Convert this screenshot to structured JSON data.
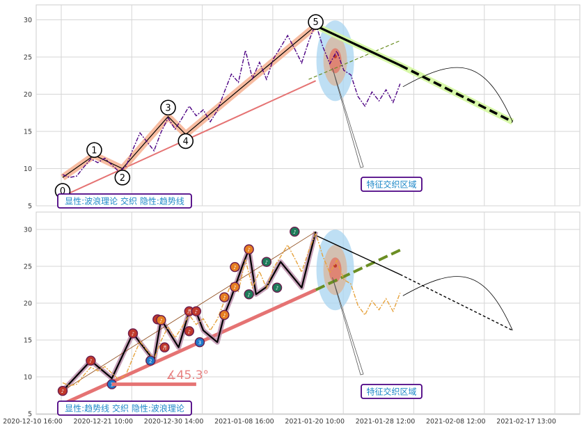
{
  "chart_data": [
    {
      "type": "line",
      "panel": "top",
      "ylim": [
        5,
        32
      ],
      "yticks": [
        5,
        10,
        15,
        20,
        25,
        30
      ],
      "grid": true,
      "caption": "显性:波浪理论 交织 隐性:趋势线",
      "annotation": "特征交织区域",
      "wave_labels": [
        {
          "label": "0",
          "x": 0,
          "y": 7.0
        },
        {
          "label": "1",
          "x": 9,
          "y": 12.5
        },
        {
          "label": "2",
          "x": 17,
          "y": 8.8
        },
        {
          "label": "3",
          "x": 30,
          "y": 18.2
        },
        {
          "label": "4",
          "x": 35,
          "y": 13.7
        },
        {
          "label": "5",
          "x": 72,
          "y": 29.7
        }
      ],
      "series": [
        {
          "role": "price",
          "color": "#4b0082",
          "x": [
            0,
            2,
            4,
            6,
            8,
            10,
            12,
            14,
            16,
            18,
            20,
            22,
            24,
            26,
            28,
            30,
            32,
            34,
            36,
            38,
            40,
            42,
            44,
            46,
            48,
            50,
            52,
            54,
            56,
            58,
            60,
            62,
            64,
            66,
            68,
            70,
            72,
            74,
            76,
            78,
            80,
            82,
            84,
            86,
            88,
            90,
            92,
            94,
            96
          ],
          "y": [
            9.2,
            8.8,
            9.0,
            10.2,
            11.3,
            10.8,
            11.4,
            10.5,
            9.6,
            10.3,
            12.6,
            14.8,
            13.6,
            12.4,
            14.9,
            16.8,
            15.3,
            16.8,
            18.4,
            17.1,
            17.9,
            16.3,
            17.8,
            20.3,
            22.7,
            21.6,
            25.9,
            22.1,
            24.3,
            22.0,
            24.8,
            26.3,
            27.9,
            26.1,
            24.2,
            27.1,
            29.5,
            26.4,
            24.1,
            25.8,
            23.2,
            22.6,
            19.7,
            18.4,
            20.3,
            19.1,
            20.6,
            18.9,
            21.4
          ]
        },
        {
          "role": "wave",
          "color": "#000000",
          "x": [
            0,
            9,
            17,
            30,
            35,
            72
          ],
          "y": [
            8.8,
            11.8,
            10.0,
            17.0,
            14.6,
            29.2
          ]
        },
        {
          "role": "trend-support",
          "color": "#e57373",
          "x": [
            0,
            72
          ],
          "y": [
            6.3,
            21.8
          ]
        },
        {
          "role": "trend-channel",
          "color": "#6b8e23",
          "x": [
            70,
            96
          ],
          "y": [
            22.0,
            27.2
          ]
        },
        {
          "role": "trend-resistance",
          "color": "#000000",
          "x": [
            72,
            96,
            128
          ],
          "y": [
            29.2,
            23.9,
            16.3
          ]
        }
      ]
    },
    {
      "type": "line",
      "panel": "bottom",
      "ylim": [
        5,
        32
      ],
      "yticks": [
        5,
        10,
        15,
        20,
        25,
        30
      ],
      "grid": true,
      "caption": "显性:趋势线 交织 隐性:波浪理论",
      "annotation": "特征交织区域",
      "angle_label": "∡45.3°",
      "x_tick_labels": [
        "2020-12-10 16:00",
        "2020-12-21 10:00",
        "2020-12-30 14:00",
        "2021-01-08 16:00",
        "2021-01-20 10:00",
        "2021-01-28 12:00",
        "2021-02-08 12:00",
        "2021-02-17 13:00"
      ],
      "series": [
        {
          "role": "price",
          "color": "#e6a23c",
          "x": [
            0,
            2,
            4,
            6,
            8,
            10,
            12,
            14,
            16,
            18,
            20,
            22,
            24,
            26,
            28,
            30,
            32,
            34,
            36,
            38,
            40,
            42,
            44,
            46,
            48,
            50,
            52,
            54,
            56,
            58,
            60,
            62,
            64,
            66,
            68,
            70,
            72,
            74,
            76,
            78,
            80,
            82,
            84,
            86,
            88,
            90,
            92,
            94,
            96
          ],
          "y": [
            9.2,
            8.8,
            9.0,
            10.2,
            11.3,
            10.8,
            11.4,
            10.5,
            9.6,
            10.3,
            12.6,
            14.8,
            13.6,
            12.4,
            14.9,
            16.8,
            15.3,
            16.8,
            18.4,
            17.1,
            17.9,
            16.3,
            17.8,
            20.3,
            22.7,
            21.6,
            25.9,
            22.1,
            24.3,
            22.0,
            24.8,
            26.3,
            27.9,
            26.1,
            24.2,
            27.1,
            29.5,
            26.4,
            24.1,
            25.8,
            23.2,
            22.6,
            19.7,
            18.4,
            20.3,
            19.1,
            20.6,
            18.9,
            21.4
          ]
        },
        {
          "role": "wave",
          "color": "#000000",
          "x": [
            0,
            8,
            14,
            20,
            26,
            28,
            33,
            36,
            38,
            40,
            44,
            46,
            48,
            51,
            53,
            55,
            58,
            62,
            68,
            72
          ],
          "y": [
            8.1,
            12.2,
            9.8,
            15.9,
            12.2,
            17.8,
            14.0,
            18.9,
            18.8,
            16.3,
            14.7,
            18.4,
            20.8,
            24.9,
            27.3,
            21.2,
            22.2,
            25.6,
            22.1,
            29.7
          ]
        },
        {
          "role": "trend-support",
          "color": "#e57373",
          "x": [
            0,
            72
          ],
          "y": [
            6.3,
            21.8
          ]
        },
        {
          "role": "trend-channel",
          "color": "#6b8e23",
          "x": [
            72,
            96
          ],
          "y": [
            21.8,
            27.2
          ]
        },
        {
          "role": "trend-resistance",
          "color": "#000000",
          "x": [
            72,
            128
          ],
          "y": [
            29.2,
            16.3
          ]
        }
      ],
      "markers": [
        {
          "x": 0,
          "y": 8.1,
          "color": "#c0392b",
          "label": "♪"
        },
        {
          "x": 8,
          "y": 12.2,
          "color": "#c0392b",
          "label": "♪"
        },
        {
          "x": 14,
          "y": 9.0,
          "color": "#1f78c8",
          "label": "1"
        },
        {
          "x": 20,
          "y": 15.9,
          "color": "#c0392b",
          "label": "♪"
        },
        {
          "x": 25,
          "y": 12.2,
          "color": "#1f78c8",
          "label": "2"
        },
        {
          "x": 27,
          "y": 17.8,
          "color": "#c0392b",
          "label": "♪"
        },
        {
          "x": 28,
          "y": 17.7,
          "color": "#e67e22",
          "label": "♪"
        },
        {
          "x": 29,
          "y": 14.0,
          "color": "#c0392b",
          "label": "♬"
        },
        {
          "x": 36,
          "y": 16.2,
          "color": "#c0392b",
          "label": "♪"
        },
        {
          "x": 36,
          "y": 18.9,
          "color": "#c0392b",
          "label": "♬"
        },
        {
          "x": 38,
          "y": 18.9,
          "color": "#c0392b",
          "label": "♪"
        },
        {
          "x": 39,
          "y": 14.7,
          "color": "#1f78c8",
          "label": "3"
        },
        {
          "x": 46,
          "y": 18.4,
          "color": "#e67e22",
          "label": "♪"
        },
        {
          "x": 46,
          "y": 20.8,
          "color": "#e67e22",
          "label": "♪"
        },
        {
          "x": 49,
          "y": 22.2,
          "color": "#e67e22",
          "label": "♪"
        },
        {
          "x": 49,
          "y": 24.9,
          "color": "#e67e22",
          "label": "♪"
        },
        {
          "x": 53,
          "y": 27.3,
          "color": "#e67e22",
          "label": "♪"
        },
        {
          "x": 53,
          "y": 21.2,
          "color": "#1e7b5a",
          "label": "♪"
        },
        {
          "x": 58,
          "y": 25.6,
          "color": "#1e7b5a",
          "label": "♪"
        },
        {
          "x": 61,
          "y": 22.1,
          "color": "#1e7b5a",
          "label": "♪"
        },
        {
          "x": 66,
          "y": 29.7,
          "color": "#1e7b5a",
          "label": "♪"
        }
      ]
    }
  ]
}
